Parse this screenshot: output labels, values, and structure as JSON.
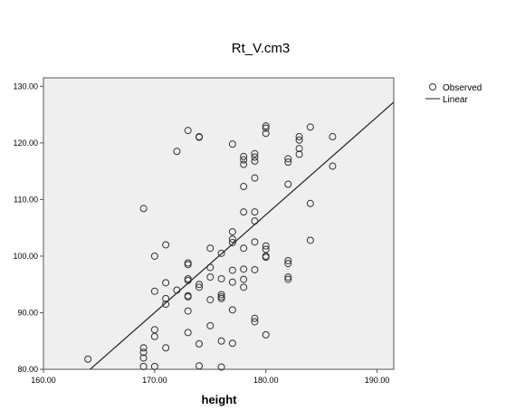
{
  "chart_data": {
    "type": "scatter",
    "title": "Rt_V.cm3",
    "xlabel": "height",
    "ylabel": "",
    "xlim": [
      160,
      191.5
    ],
    "ylim": [
      80,
      131.5
    ],
    "xticks": [
      160,
      170,
      180,
      190
    ],
    "yticks": [
      80,
      90,
      100,
      110,
      120,
      130
    ],
    "xtick_labels": [
      "160.00",
      "170.00",
      "180.00",
      "190.00"
    ],
    "ytick_labels": [
      "80.00",
      "90.00",
      "100.00",
      "110.00",
      "120.00",
      "130.00"
    ],
    "grid": false,
    "legend_position": "top-right",
    "legend": [
      "Observed",
      "Linear"
    ],
    "colors": {
      "plot_background": "#efefef",
      "marker": "#333333",
      "line": "#222222"
    },
    "series": [
      {
        "name": "Observed",
        "type": "scatter",
        "points": [
          [
            164,
            81.8
          ],
          [
            169,
            108.4
          ],
          [
            169,
            83.8
          ],
          [
            169,
            83
          ],
          [
            169,
            82
          ],
          [
            169,
            80.5
          ],
          [
            170,
            100
          ],
          [
            170,
            93.8
          ],
          [
            170,
            87
          ],
          [
            170,
            85.8
          ],
          [
            170,
            80.5
          ],
          [
            171,
            102
          ],
          [
            171,
            95.3
          ],
          [
            171,
            92.5
          ],
          [
            171,
            91.5
          ],
          [
            171,
            83.8
          ],
          [
            172,
            118.5
          ],
          [
            172,
            94
          ],
          [
            173,
            122.2
          ],
          [
            173,
            98.8
          ],
          [
            173,
            98.5
          ],
          [
            173,
            96
          ],
          [
            173,
            95.7
          ],
          [
            173,
            93
          ],
          [
            173,
            92.8
          ],
          [
            173,
            90.3
          ],
          [
            173,
            86.5
          ],
          [
            174,
            121.1
          ],
          [
            174,
            121
          ],
          [
            174,
            95
          ],
          [
            174,
            94.5
          ],
          [
            174,
            84.5
          ],
          [
            174,
            80.6
          ],
          [
            175,
            101.4
          ],
          [
            175,
            98
          ],
          [
            175,
            96.3
          ],
          [
            175,
            92.3
          ],
          [
            175,
            87.7
          ],
          [
            176,
            100.5
          ],
          [
            176,
            96
          ],
          [
            176,
            93.2
          ],
          [
            176,
            92.8
          ],
          [
            176,
            92.5
          ],
          [
            176,
            85
          ],
          [
            176,
            80.4
          ],
          [
            177,
            119.8
          ],
          [
            177,
            104.3
          ],
          [
            177,
            103
          ],
          [
            177,
            102.4
          ],
          [
            177,
            97.5
          ],
          [
            177,
            95.4
          ],
          [
            177,
            90.5
          ],
          [
            177,
            84.6
          ],
          [
            178,
            117.6
          ],
          [
            178,
            117
          ],
          [
            178,
            116.2
          ],
          [
            178,
            112.3
          ],
          [
            178,
            107.8
          ],
          [
            178,
            101.4
          ],
          [
            178,
            97.7
          ],
          [
            178,
            95.9
          ],
          [
            178,
            94.5
          ],
          [
            179,
            118.1
          ],
          [
            179,
            117.5
          ],
          [
            179,
            116.8
          ],
          [
            179,
            113.8
          ],
          [
            179,
            107.8
          ],
          [
            179,
            106.2
          ],
          [
            179,
            102.5
          ],
          [
            179,
            97.6
          ],
          [
            179,
            89
          ],
          [
            179,
            88.4
          ],
          [
            180,
            123
          ],
          [
            180,
            122.6
          ],
          [
            180,
            121.7
          ],
          [
            180,
            101.8
          ],
          [
            180,
            101.2
          ],
          [
            180,
            100
          ],
          [
            180,
            99.8
          ],
          [
            180,
            86.1
          ],
          [
            182,
            117.2
          ],
          [
            182,
            116.6
          ],
          [
            182,
            112.7
          ],
          [
            182,
            99.2
          ],
          [
            182,
            98.7
          ],
          [
            182,
            96.3
          ],
          [
            182,
            95.9
          ],
          [
            183,
            121.1
          ],
          [
            183,
            120.5
          ],
          [
            183,
            119
          ],
          [
            183,
            118
          ],
          [
            184,
            122.8
          ],
          [
            184,
            109.3
          ],
          [
            184,
            102.8
          ],
          [
            186,
            121.1
          ],
          [
            186,
            115.9
          ]
        ]
      },
      {
        "name": "Linear",
        "type": "line",
        "points": [
          [
            164.2,
            80
          ],
          [
            191.5,
            127.2
          ]
        ]
      }
    ]
  }
}
